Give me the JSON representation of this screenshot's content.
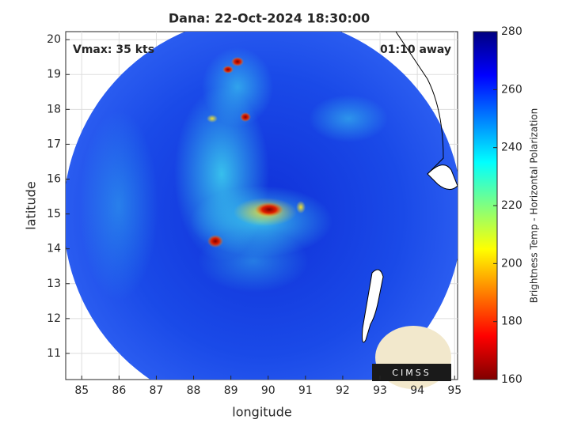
{
  "chart_data": {
    "type": "heatmap",
    "title": "Dana: 22-Oct-2024 18:30:00",
    "annotations": [
      "Vmax: 35 kts",
      "01:10 away"
    ],
    "xlabel": "longitude",
    "ylabel": "latitude",
    "xlim": [
      84.57,
      95.08
    ],
    "ylim": [
      10.25,
      20.23
    ],
    "xticks": [
      85,
      86,
      87,
      88,
      89,
      90,
      91,
      92,
      93,
      94,
      95
    ],
    "yticks": [
      11,
      12,
      13,
      14,
      15,
      16,
      17,
      18,
      19,
      20
    ],
    "grid": true,
    "colorbar": {
      "label": "Brightness Temp - Horizontal Polarization",
      "lim": [
        160,
        280
      ],
      "ticks": [
        160,
        180,
        200,
        220,
        240,
        260,
        280
      ],
      "colormap": "jet"
    },
    "logo": "CIMSS"
  }
}
